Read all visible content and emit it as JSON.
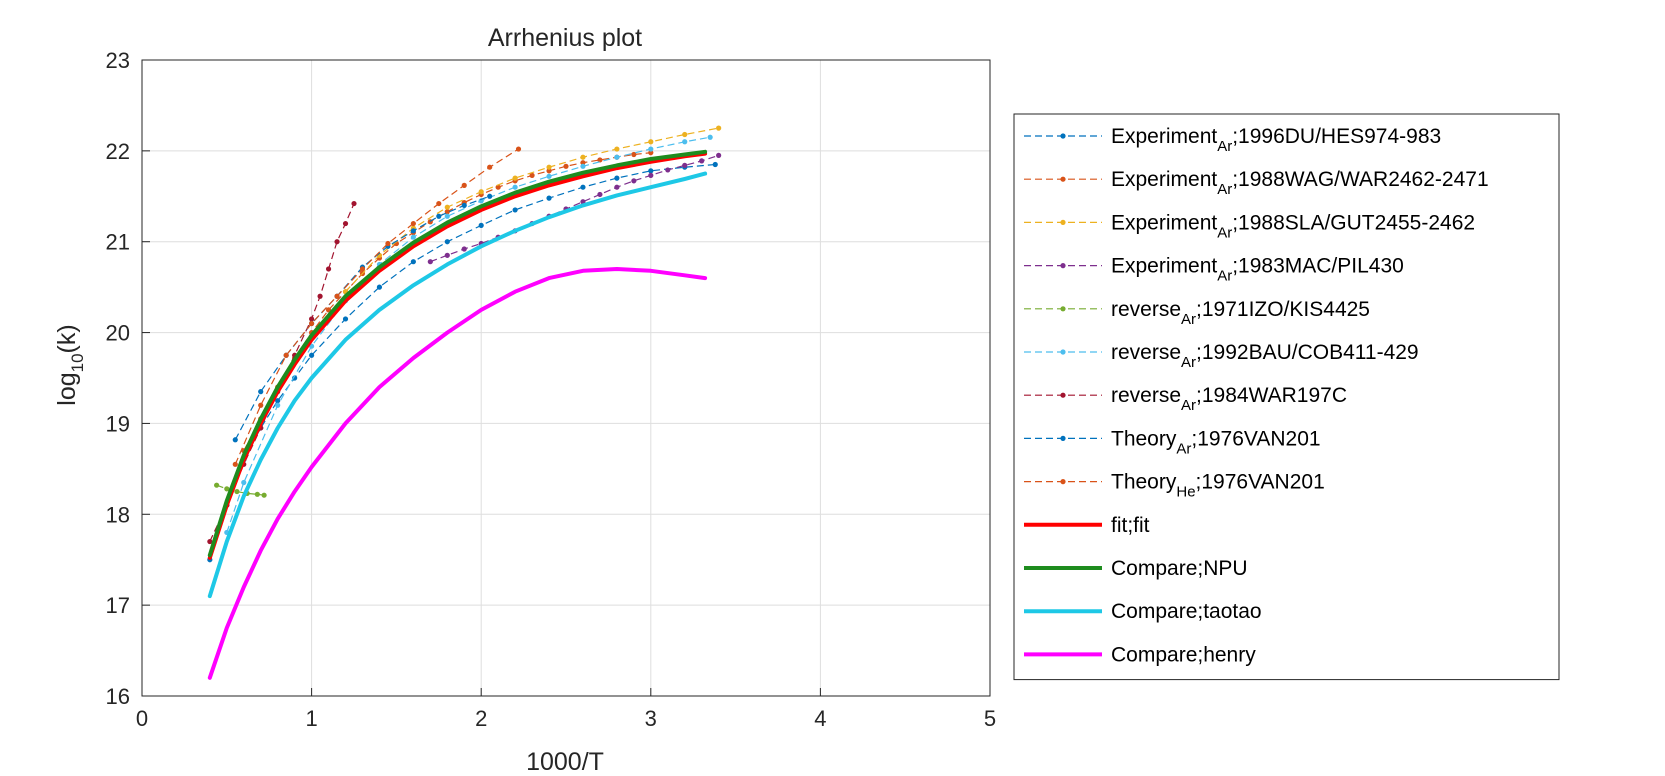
{
  "chart_data": {
    "type": "line",
    "title": "Arrhenius plot",
    "xlabel": "1000/T",
    "ylabel": {
      "main": "log",
      "sub": "10",
      "rest": "(k)"
    },
    "xlim": [
      0,
      5
    ],
    "ylim": [
      16,
      23
    ],
    "xticks": [
      "0",
      "1",
      "2",
      "3",
      "4",
      "5"
    ],
    "yticks": [
      "16",
      "17",
      "18",
      "19",
      "20",
      "21",
      "22",
      "23"
    ],
    "grid": true,
    "legend_position": "right",
    "series": [
      {
        "name": "Experiment",
        "sub": "Ar",
        "suffix": ";1996DU/HES974-983",
        "color": "#0072BD",
        "style": "dashed-dots",
        "x": [
          0.4,
          0.5,
          0.6,
          0.7,
          0.8,
          0.9,
          1.0,
          1.2,
          1.4,
          1.6,
          1.8,
          2.0,
          2.2,
          2.4,
          2.6,
          2.8,
          3.0,
          3.2,
          3.38
        ],
        "y": [
          17.5,
          18.1,
          18.6,
          18.95,
          19.25,
          19.5,
          19.75,
          20.15,
          20.5,
          20.78,
          21.0,
          21.18,
          21.35,
          21.48,
          21.6,
          21.7,
          21.78,
          21.82,
          21.85
        ]
      },
      {
        "name": "Experiment",
        "sub": "Ar",
        "suffix": ";1988WAG/WAR2462-2471",
        "color": "#D95319",
        "style": "dashed-dots",
        "x": [
          0.6,
          0.7,
          0.8,
          0.9,
          1.0,
          1.1,
          1.2,
          1.3,
          1.4,
          1.5,
          1.6,
          1.7,
          1.8,
          1.9,
          2.0,
          2.1,
          2.2,
          2.3,
          2.4,
          2.5,
          2.6,
          2.7,
          2.8,
          2.9,
          3.0
        ],
        "y": [
          18.7,
          19.05,
          19.4,
          19.72,
          20.0,
          20.25,
          20.45,
          20.65,
          20.82,
          20.98,
          21.1,
          21.22,
          21.33,
          21.43,
          21.52,
          21.6,
          21.67,
          21.73,
          21.78,
          21.83,
          21.87,
          21.9,
          21.93,
          21.96,
          21.98
        ]
      },
      {
        "name": "Experiment",
        "sub": "Ar",
        "suffix": ";1988SLA/GUT2455-2462",
        "color": "#EDB120",
        "style": "dashed-dots",
        "x": [
          1.2,
          1.4,
          1.6,
          1.8,
          2.0,
          2.2,
          2.4,
          2.6,
          2.8,
          3.0,
          3.2,
          3.4
        ],
        "y": [
          20.45,
          20.85,
          21.15,
          21.38,
          21.55,
          21.7,
          21.82,
          21.93,
          22.02,
          22.1,
          22.18,
          22.25
        ]
      },
      {
        "name": "Experiment",
        "sub": "Ar",
        "suffix": ";1983MAC/PIL430",
        "color": "#7E2F8E",
        "style": "dashed-dots",
        "x": [
          1.7,
          1.8,
          1.9,
          2.0,
          2.1,
          2.2,
          2.3,
          2.4,
          2.5,
          2.6,
          2.7,
          2.8,
          2.9,
          3.0,
          3.1,
          3.2,
          3.3,
          3.4
        ],
        "y": [
          20.78,
          20.85,
          20.92,
          20.98,
          21.05,
          21.12,
          21.2,
          21.28,
          21.36,
          21.44,
          21.52,
          21.6,
          21.67,
          21.73,
          21.79,
          21.84,
          21.89,
          21.95
        ]
      },
      {
        "name": "reverse",
        "sub": "Ar",
        "suffix": ";1971IZO/KIS4425",
        "color": "#77AC30",
        "style": "dashed-dots",
        "x": [
          0.44,
          0.5,
          0.56,
          0.62,
          0.68,
          0.72
        ],
        "y": [
          18.32,
          18.28,
          18.25,
          18.23,
          18.22,
          18.21
        ]
      },
      {
        "name": "reverse",
        "sub": "Ar",
        "suffix": ";1992BAU/COB411-429",
        "color": "#4DBEEE",
        "style": "dashed-dots",
        "x": [
          0.5,
          0.6,
          0.8,
          1.0,
          1.2,
          1.4,
          1.6,
          1.8,
          2.0,
          2.2,
          2.4,
          2.6,
          2.8,
          3.0,
          3.2,
          3.35
        ],
        "y": [
          17.8,
          18.35,
          19.2,
          19.85,
          20.35,
          20.75,
          21.05,
          21.28,
          21.45,
          21.6,
          21.72,
          21.83,
          21.93,
          22.02,
          22.1,
          22.15
        ]
      },
      {
        "name": "reverse",
        "sub": "Ar",
        "suffix": ";1984WAR197C",
        "color": "#A2142F",
        "style": "dashed-dots",
        "x": [
          0.4,
          0.5,
          0.6,
          0.7,
          0.8,
          0.9,
          1.0,
          1.05,
          1.1,
          1.15,
          1.2,
          1.25
        ],
        "y": [
          17.7,
          18.1,
          18.55,
          18.95,
          19.35,
          19.75,
          20.15,
          20.4,
          20.7,
          21.0,
          21.2,
          21.42
        ]
      },
      {
        "name": "Theory",
        "sub": "Ar",
        "suffix": ";1976VAN201",
        "color": "#0072BD",
        "style": "dashed-dots",
        "x": [
          0.55,
          0.7,
          0.85,
          1.0,
          1.15,
          1.3,
          1.45,
          1.6,
          1.75,
          1.9,
          2.05
        ],
        "y": [
          18.82,
          19.35,
          19.75,
          20.1,
          20.4,
          20.72,
          20.95,
          21.12,
          21.28,
          21.4,
          21.5
        ]
      },
      {
        "name": "Theory",
        "sub": "He",
        "suffix": ";1976VAN201",
        "color": "#D95319",
        "style": "dashed-dots",
        "x": [
          0.55,
          0.7,
          0.85,
          1.0,
          1.15,
          1.3,
          1.45,
          1.6,
          1.75,
          1.9,
          2.05,
          2.22
        ],
        "y": [
          18.55,
          19.2,
          19.75,
          20.1,
          20.4,
          20.7,
          20.98,
          21.2,
          21.42,
          21.62,
          21.82,
          22.02
        ]
      },
      {
        "name": "fit;fit",
        "sub": "",
        "suffix": "",
        "color": "#FF0000",
        "style": "solid",
        "x": [
          0.4,
          0.5,
          0.6,
          0.7,
          0.8,
          0.9,
          1.0,
          1.2,
          1.4,
          1.6,
          1.8,
          2.0,
          2.2,
          2.4,
          2.6,
          2.8,
          3.0,
          3.2,
          3.32
        ],
        "y": [
          17.52,
          18.1,
          18.6,
          19.0,
          19.35,
          19.65,
          19.92,
          20.35,
          20.68,
          20.95,
          21.17,
          21.35,
          21.5,
          21.62,
          21.72,
          21.81,
          21.88,
          21.94,
          21.97
        ]
      },
      {
        "name": "Compare;NPU",
        "sub": "",
        "suffix": "",
        "color": "#1E8C1E",
        "style": "solid",
        "x": [
          0.4,
          0.5,
          0.6,
          0.7,
          0.8,
          0.9,
          1.0,
          1.2,
          1.4,
          1.6,
          1.8,
          2.0,
          2.2,
          2.4,
          2.6,
          2.8,
          3.0,
          3.2,
          3.32
        ],
        "y": [
          17.55,
          18.15,
          18.65,
          19.05,
          19.4,
          19.7,
          19.97,
          20.4,
          20.72,
          20.99,
          21.21,
          21.39,
          21.54,
          21.66,
          21.76,
          21.84,
          21.91,
          21.96,
          21.99
        ]
      },
      {
        "name": "Compare;taotao",
        "sub": "",
        "suffix": "",
        "color": "#1EC8E6",
        "style": "solid",
        "x": [
          0.4,
          0.5,
          0.6,
          0.7,
          0.8,
          0.9,
          1.0,
          1.2,
          1.4,
          1.6,
          1.8,
          2.0,
          2.2,
          2.4,
          2.6,
          2.8,
          3.0,
          3.2,
          3.32
        ],
        "y": [
          17.1,
          17.7,
          18.2,
          18.6,
          18.95,
          19.25,
          19.5,
          19.92,
          20.25,
          20.52,
          20.75,
          20.95,
          21.12,
          21.27,
          21.4,
          21.51,
          21.6,
          21.69,
          21.75
        ]
      },
      {
        "name": "Compare;henry",
        "sub": "",
        "suffix": "",
        "color": "#FF00FF",
        "style": "solid",
        "x": [
          0.4,
          0.5,
          0.6,
          0.7,
          0.8,
          0.9,
          1.0,
          1.2,
          1.4,
          1.6,
          1.8,
          2.0,
          2.2,
          2.4,
          2.6,
          2.8,
          3.0,
          3.2,
          3.32
        ],
        "y": [
          16.2,
          16.75,
          17.2,
          17.6,
          17.95,
          18.25,
          18.52,
          19.0,
          19.4,
          19.72,
          20.0,
          20.25,
          20.45,
          20.6,
          20.68,
          20.7,
          20.68,
          20.63,
          20.6
        ]
      }
    ]
  }
}
